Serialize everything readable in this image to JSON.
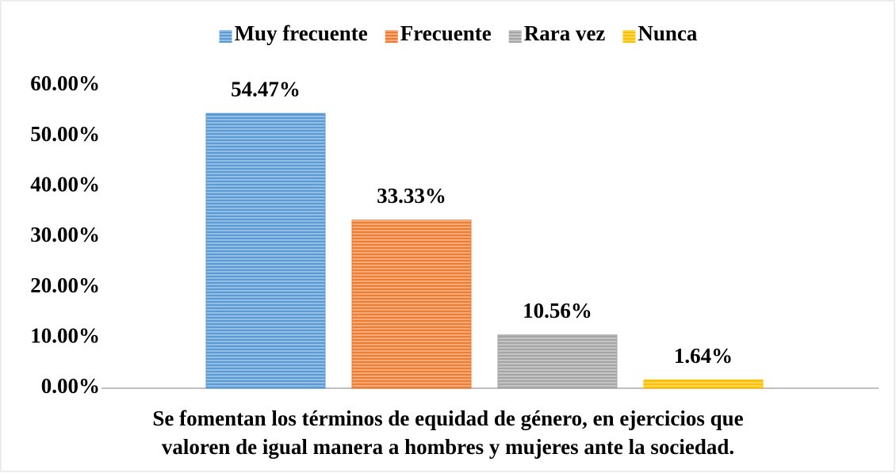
{
  "chart_data": {
    "type": "bar",
    "categories": [
      "Se fomentan los términos de equidad de género, en ejercicios que valoren de igual manera a hombres y mujeres ante la sociedad."
    ],
    "series": [
      {
        "name": "Muy frecuente",
        "color": "#5b9bd5",
        "values": [
          54.47
        ],
        "value_labels": [
          "54.47%"
        ]
      },
      {
        "name": "Frecuente",
        "color": "#ed7d31",
        "values": [
          33.33
        ],
        "value_labels": [
          "33.33%"
        ]
      },
      {
        "name": "Rara vez",
        "color": "#a5a5a5",
        "values": [
          10.56
        ],
        "value_labels": [
          "10.56%"
        ]
      },
      {
        "name": "Nunca",
        "color": "#ffc000",
        "values": [
          1.64
        ],
        "value_labels": [
          "1.64%"
        ]
      }
    ],
    "ylim": [
      0,
      60
    ],
    "yticks": [
      {
        "value": 0,
        "label": "0.00%"
      },
      {
        "value": 10,
        "label": "10.00%"
      },
      {
        "value": 20,
        "label": "20.00%"
      },
      {
        "value": 30,
        "label": "30.00%"
      },
      {
        "value": 40,
        "label": "40.00%"
      },
      {
        "value": 50,
        "label": "50.00%"
      },
      {
        "value": 60,
        "label": "60.00%"
      }
    ],
    "grid": false,
    "legend": "top"
  }
}
